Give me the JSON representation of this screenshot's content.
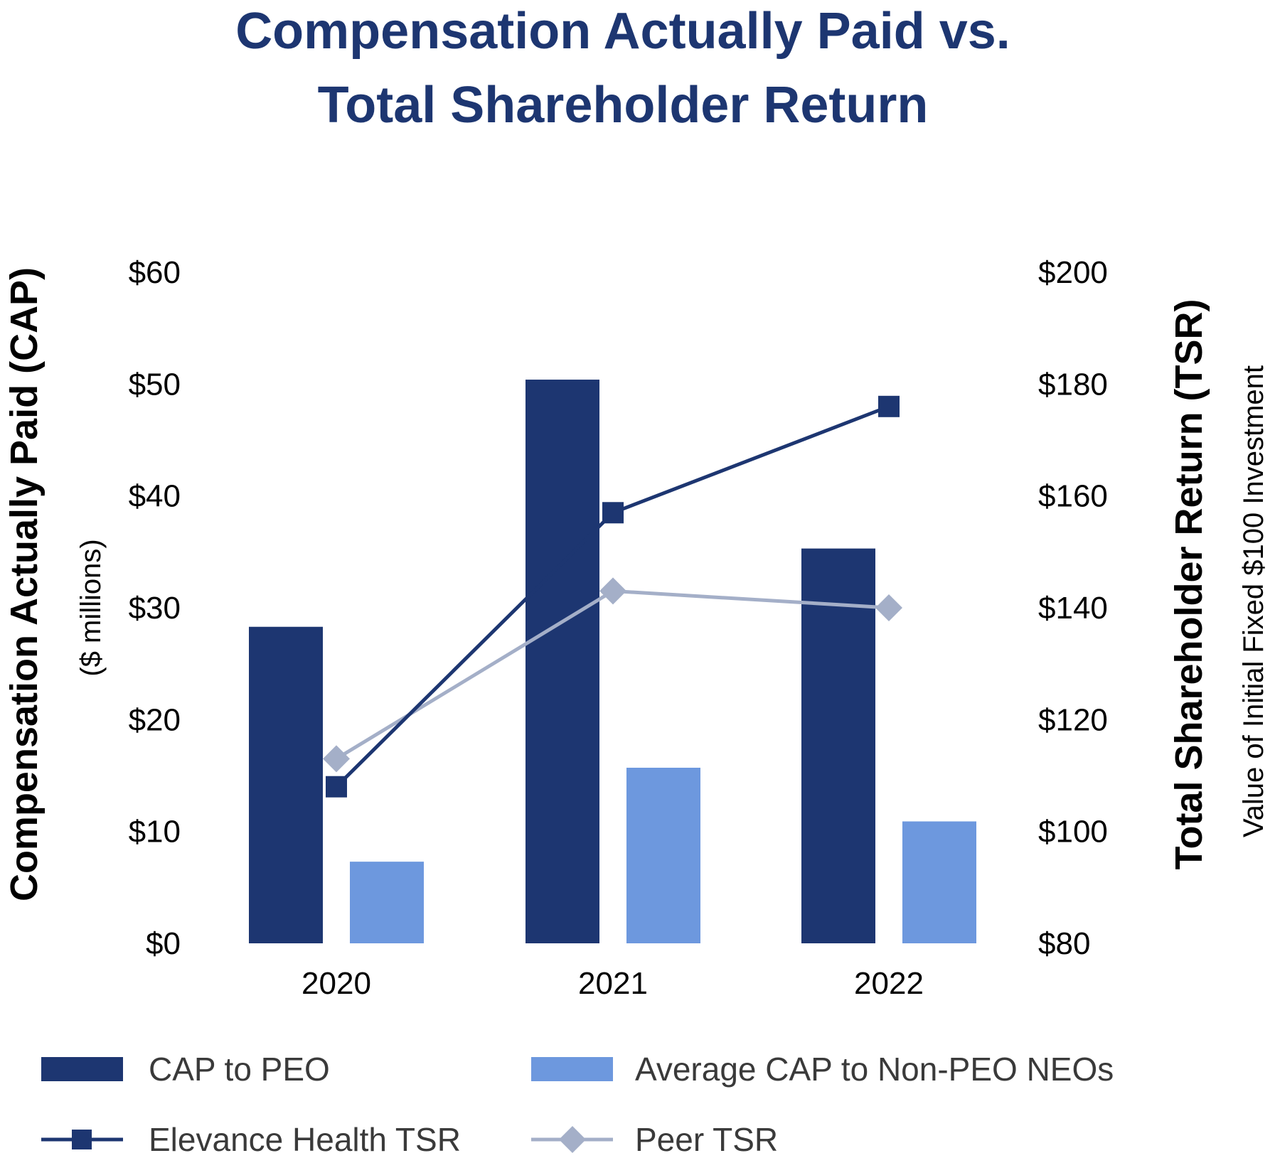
{
  "chart_data": {
    "type": "bar",
    "title": [
      "Compensation Actually Paid vs.",
      "Total Shareholder Return"
    ],
    "categories": [
      "2020",
      "2021",
      "2022"
    ],
    "y_left": {
      "label": "Compensation Actually Paid (CAP)",
      "sublabel": "($ millions)",
      "range": [
        0,
        60
      ],
      "ticks": [
        "$0",
        "$10",
        "$20",
        "$30",
        "$40",
        "$50",
        "$60"
      ]
    },
    "y_right": {
      "label": "Total Shareholder Return (TSR)",
      "sublabel": "Value of Initial Fixed $100 Investment",
      "range": [
        80,
        200
      ],
      "ticks": [
        "$80",
        "$100",
        "$120",
        "$140",
        "$160",
        "$180",
        "$200"
      ]
    },
    "bar_series": [
      {
        "name": "CAP to PEO",
        "color": "#1d3671",
        "values": [
          28.3,
          50.4,
          35.3
        ]
      },
      {
        "name": "Average CAP to Non-PEO NEOs",
        "color": "#6d98de",
        "values": [
          7.3,
          15.7,
          10.9
        ]
      }
    ],
    "line_series": [
      {
        "name": "Elevance Health TSR",
        "color": "#1d3671",
        "marker": "square",
        "axis": "right",
        "values": [
          108,
          157,
          176
        ]
      },
      {
        "name": "Peer TSR",
        "color": "#a4afc8",
        "marker": "diamond",
        "axis": "right",
        "values": [
          113,
          143,
          140
        ]
      }
    ],
    "legend_position": "bottom",
    "grid": false
  }
}
